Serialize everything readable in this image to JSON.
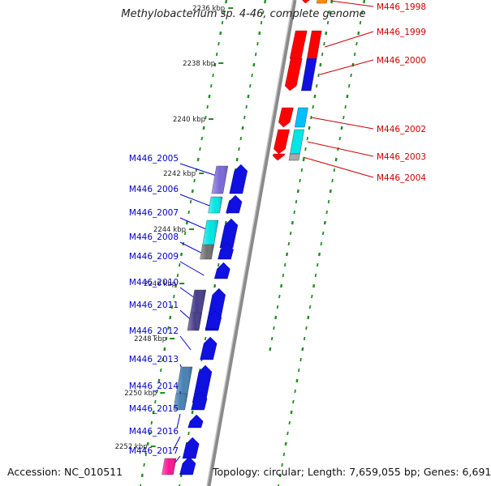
{
  "title": "Methylobacterium sp. 4-46, complete genome",
  "footer": {
    "accession": "Accession: NC_010511",
    "topology": "Topology: circular; Length: 7,659,055 bp; Genes: 6,691"
  },
  "kbp_ticks": [
    "2236 kbp",
    "2238 kbp",
    "2240 kbp",
    "2242 kbp",
    "2244 kbp",
    "2246 kbp",
    "2248 kbp",
    "2250 kbp",
    "2252 kbp"
  ],
  "colors": {
    "forward_label": "#0000cc",
    "reverse_label": "#cc0000",
    "gc_dots": "#228b22",
    "backbone": "#808080"
  },
  "forward_genes": [
    {
      "label": "M446_2005",
      "color": "#7b68d8",
      "arrow": "#1010e0"
    },
    {
      "label": "M446_2006",
      "color": "#00e5e5",
      "arrow": "#1010e0"
    },
    {
      "label": "M446_2007",
      "color": "#00e5e5",
      "arrow": "#1010e0"
    },
    {
      "label": "M446_2008",
      "color": "#707070",
      "arrow": "#1010e0"
    },
    {
      "label": "M446_2009",
      "color": "",
      "arrow": "#1010e0"
    },
    {
      "label": "M446_2010",
      "color": "#483d8b",
      "arrow": "#1010e0"
    },
    {
      "label": "M446_2011",
      "color": "#483d8b",
      "arrow": "#1010e0"
    },
    {
      "label": "M446_2012",
      "color": "",
      "arrow": "#1010e0"
    },
    {
      "label": "M446_2013",
      "color": "#4682b4",
      "arrow": "#1010e0"
    },
    {
      "label": "M446_2014",
      "color": "#4682b4",
      "arrow": "#1010e0"
    },
    {
      "label": "M446_2015",
      "color": "",
      "arrow": "#1010e0"
    },
    {
      "label": "M446_2016",
      "color": "",
      "arrow": "#1010e0"
    },
    {
      "label": "M446_2017",
      "color": "#ff1493",
      "arrow": "#1010e0"
    }
  ],
  "reverse_genes": [
    {
      "label": "M446_1998",
      "color": "#ff8c00",
      "arrow": "#ff0000"
    },
    {
      "label": "M446_1999",
      "color": "#ff0000",
      "arrow": "#ff0000"
    },
    {
      "label": "M446_2000",
      "color": "#1010e0",
      "arrow": "#ff0000"
    },
    {
      "label": "M446_2002",
      "color": "#00bfff",
      "arrow": "#ff0000"
    },
    {
      "label": "M446_2003",
      "color": "#00e5e5",
      "arrow": "#ff0000"
    },
    {
      "label": "M446_2004",
      "color": "#a9a9a9",
      "arrow": "#ff0000"
    }
  ]
}
